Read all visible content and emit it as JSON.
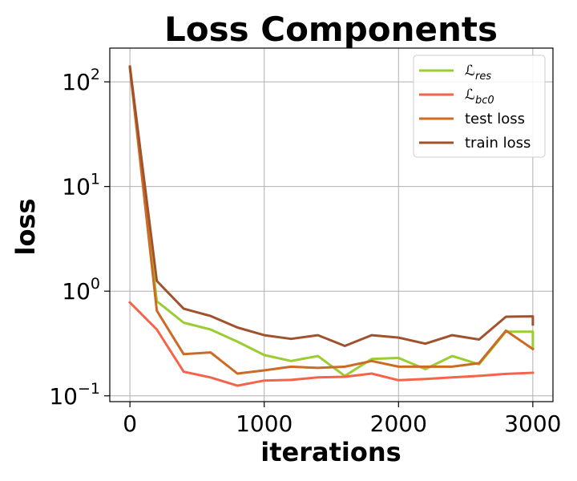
{
  "chart_data": {
    "type": "line",
    "title": "Loss Components",
    "xlabel": "iterations",
    "ylabel": "loss",
    "yscale": "log",
    "xlim": [
      -150,
      3150
    ],
    "ylim": [
      0.088,
      210
    ],
    "grid": true,
    "legend_position": "top-right",
    "x_ticks": [
      {
        "value": 0,
        "label": "0"
      },
      {
        "value": 1000,
        "label": "1000"
      },
      {
        "value": 2000,
        "label": "2000"
      },
      {
        "value": 3000,
        "label": "3000"
      }
    ],
    "y_ticks": [
      {
        "value": 0.1,
        "base": "10",
        "exp": "−1"
      },
      {
        "value": 1,
        "base": "10",
        "exp": "0"
      },
      {
        "value": 10,
        "base": "10",
        "exp": "1"
      },
      {
        "value": 100,
        "base": "10",
        "exp": "2"
      }
    ],
    "x": [
      0,
      200,
      400,
      600,
      800,
      1000,
      1200,
      1400,
      1600,
      1800,
      2000,
      2200,
      2400,
      2600,
      2800,
      3000
    ],
    "series": [
      {
        "name_main": "ℒ",
        "name_sub": "res",
        "color": "#9acd32",
        "x": [
          0,
          200,
          400,
          600,
          800,
          1000,
          1200,
          1400,
          1600,
          1800,
          2000,
          2200,
          2400,
          2600,
          2800,
          3000,
          3000
        ],
        "values": [
          140,
          0.8,
          0.5,
          0.43,
          0.33,
          0.245,
          0.215,
          0.24,
          0.155,
          0.225,
          0.23,
          0.18,
          0.24,
          0.2,
          0.41,
          0.41,
          0.29
        ]
      },
      {
        "name_main": "ℒ",
        "name_sub": "bc0",
        "color": "#f4634a",
        "x": [
          0,
          200,
          400,
          600,
          800,
          1000,
          1200,
          1400,
          1600,
          1800,
          2000,
          2200,
          2400,
          2600,
          2800,
          3000
        ],
        "values": [
          0.78,
          0.43,
          0.17,
          0.15,
          0.125,
          0.14,
          0.142,
          0.15,
          0.152,
          0.163,
          0.141,
          0.145,
          0.15,
          0.155,
          0.162,
          0.166
        ]
      },
      {
        "name_main": "test loss",
        "name_sub": "",
        "color": "#cd6a23",
        "x": [
          0,
          200,
          400,
          600,
          800,
          1000,
          1200,
          1400,
          1600,
          1800,
          2000,
          2200,
          2400,
          2600,
          2800,
          3000
        ],
        "values": [
          135,
          0.65,
          0.25,
          0.26,
          0.163,
          0.175,
          0.19,
          0.185,
          0.19,
          0.215,
          0.19,
          0.19,
          0.19,
          0.205,
          0.42,
          0.28
        ]
      },
      {
        "name_main": "train loss",
        "name_sub": "",
        "color": "#a0522d",
        "x": [
          0,
          200,
          400,
          600,
          800,
          1000,
          1200,
          1400,
          1600,
          1800,
          2000,
          2200,
          2400,
          2600,
          2800,
          3000,
          3000
        ],
        "values": [
          140,
          1.25,
          0.68,
          0.58,
          0.45,
          0.38,
          0.35,
          0.38,
          0.3,
          0.38,
          0.36,
          0.315,
          0.38,
          0.345,
          0.57,
          0.575,
          0.48
        ]
      }
    ]
  }
}
